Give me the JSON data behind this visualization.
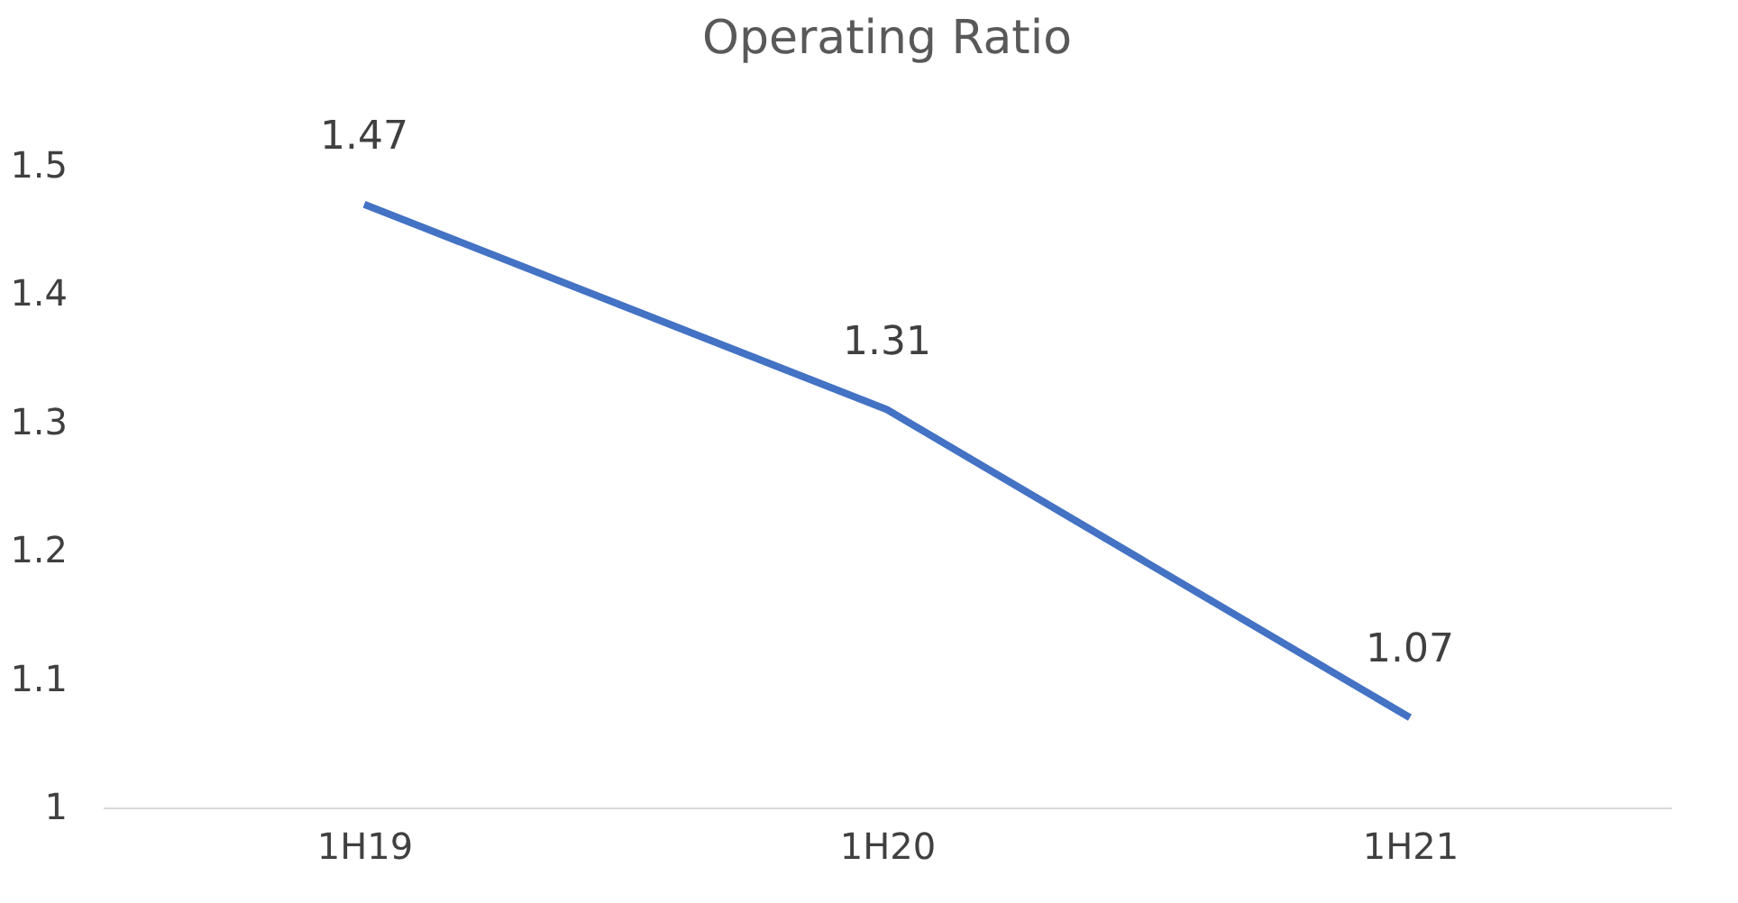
{
  "chart_data": {
    "type": "line",
    "title": "Operating Ratio",
    "categories": [
      "1H19",
      "1H20",
      "1H21"
    ],
    "series": [
      {
        "color": "#4472c4",
        "values": [
          1.47,
          1.31,
          1.07
        ]
      }
    ],
    "ylim": [
      1,
      1.5
    ],
    "yticks": [
      1,
      1.1,
      1.2,
      1.3,
      1.4,
      1.5
    ],
    "grid": false,
    "data_labels": true,
    "marker": "none",
    "line_style": "solid",
    "legend": false
  }
}
